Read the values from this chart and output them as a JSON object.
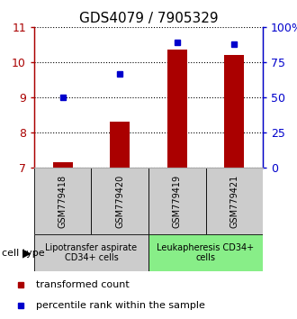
{
  "title": "GDS4079 / 7905329",
  "samples": [
    "GSM779418",
    "GSM779420",
    "GSM779419",
    "GSM779421"
  ],
  "transformed_counts": [
    7.15,
    8.3,
    10.35,
    10.2
  ],
  "percentile_ranks": [
    9.0,
    9.67,
    10.57,
    10.52
  ],
  "ylim_left": [
    7,
    11
  ],
  "ylim_right": [
    0,
    100
  ],
  "yticks_left": [
    7,
    8,
    9,
    10,
    11
  ],
  "ytick_labels_right": [
    "0",
    "25",
    "50",
    "75",
    "100%"
  ],
  "yticks_right": [
    0,
    25,
    50,
    75,
    100
  ],
  "bar_color": "#aa0000",
  "dot_color": "#0000cc",
  "groups": [
    {
      "label": "Lipotransfer aspirate\nCD34+ cells",
      "samples": [
        0,
        1
      ],
      "color": "#cccccc"
    },
    {
      "label": "Leukapheresis CD34+\ncells",
      "samples": [
        2,
        3
      ],
      "color": "#88ee88"
    }
  ],
  "cell_type_label": "cell type",
  "legend_bar_label": "transformed count",
  "legend_dot_label": "percentile rank within the sample",
  "title_fontsize": 11,
  "tick_fontsize": 9,
  "sample_fontsize": 7,
  "group_fontsize": 7,
  "legend_fontsize": 8
}
